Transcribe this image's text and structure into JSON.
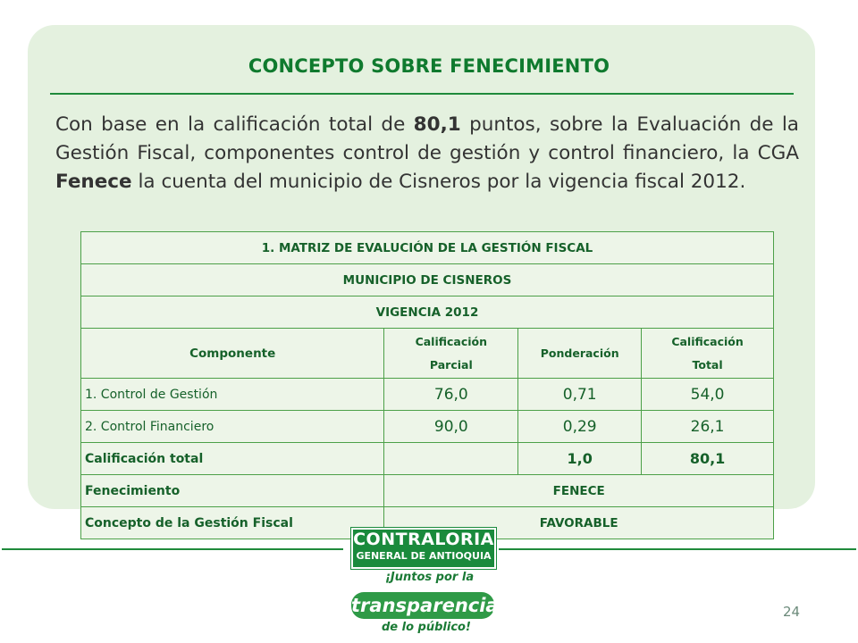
{
  "slide": {
    "title": "CONCEPTO SOBRE FENECIMIENTO",
    "paragraph": {
      "p1": "Con base en la calificación total de ",
      "score": "80,1",
      "p2": " puntos, sobre la Evaluación de la Gestión Fiscal, componentes control de gestión y control financiero, la CGA ",
      "verdict": "Fenece",
      "p3": " la cuenta del municipio de Cisneros por la vigencia fiscal 2012."
    },
    "page_number": "24"
  },
  "table": {
    "title": "1. MATRIZ DE EVALUCIÓN DE LA GESTIÓN FISCAL",
    "entity": "MUNICIPIO DE CISNEROS",
    "period": "VIGENCIA 2012",
    "headers": {
      "component": "Componente",
      "partial_l1": "Calificación",
      "partial_l2": "Parcial",
      "weight": "Ponderación",
      "total_l1": "Calificación",
      "total_l2": "Total"
    },
    "rows": [
      {
        "label": "1. Control de Gestión",
        "partial": "76,0",
        "weight": "0,71",
        "total": "54,0"
      },
      {
        "label": "2. Control Financiero",
        "partial": "90,0",
        "weight": "0,29",
        "total": "26,1"
      }
    ],
    "total_row": {
      "label": "Calificación total",
      "weight": "1,0",
      "total": "80,1"
    },
    "fenecimiento": {
      "label": "Fenecimiento",
      "value": "FENECE"
    },
    "concepto": {
      "label": "Concepto de la Gestión Fiscal",
      "value": "FAVORABLE"
    }
  },
  "logo": {
    "line1": "CONTRALORIA",
    "line2": "GENERAL DE ANTIOQUIA",
    "tag1": "¡Juntos por la",
    "tag2": "transparencia",
    "tag3": "de lo público!"
  },
  "colors": {
    "panel_bg": "#e4f1df",
    "accent_green": "#0f7a2e",
    "table_border": "#4ca048",
    "table_cell_bg": "#edf5e8"
  }
}
